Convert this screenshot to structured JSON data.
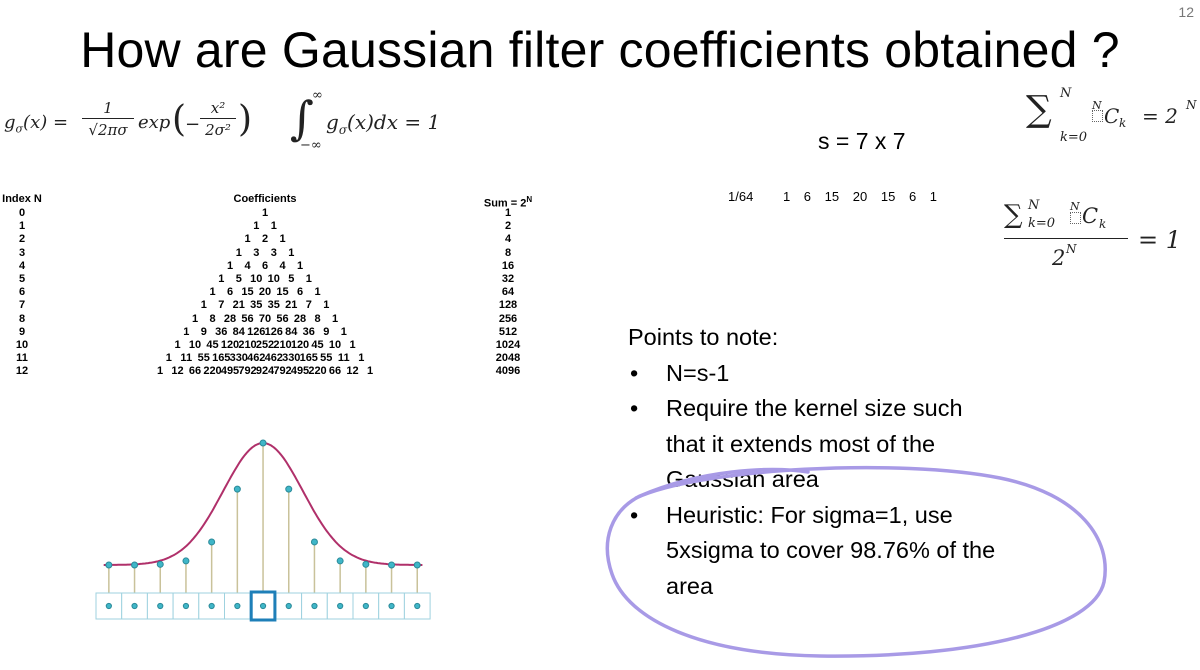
{
  "slide": {
    "number": "12",
    "title": "How are Gaussian filter coefficients obtained ?"
  },
  "formulas": {
    "gaussian_lhs": "g",
    "gaussian_sub": "σ",
    "gaussian_arg": "(x) =",
    "gaussian_num": "1",
    "gaussian_den": "√2πσ",
    "gaussian_exp": "exp",
    "gaussian_exp_num": "x²",
    "gaussian_exp_den": "2σ²",
    "integral_upper": "∞",
    "integral_lower": "−∞",
    "integral_body": "g",
    "integral_sub": "σ",
    "integral_rest": "(x)dx = 1",
    "binom_sum_upper": "N",
    "binom_sum_lower": "k=0",
    "binom_sum_body": "C",
    "binom_sum_body_sub": "k",
    "binom_sum_body_sup": "N",
    "binom_sum_rhs": "= 2",
    "binom_sum_rhs_sup": "N",
    "ratio_num_upper": "N",
    "ratio_num_lower": "k=0",
    "ratio_num_body": "C",
    "ratio_num_body_sub": "k",
    "ratio_num_body_sup": "N",
    "ratio_den": "2",
    "ratio_den_sup": "N",
    "ratio_rhs": "= 1"
  },
  "size_label": "s = 7 x 7",
  "kernel_row": {
    "scale": "1/64",
    "values": [
      "1",
      "6",
      "15",
      "20",
      "15",
      "6",
      "1"
    ]
  },
  "pascal": {
    "header_index": "Index N",
    "header_coefficients": "Coefficients",
    "header_sum": "Sum = 2",
    "header_sum_sup": "N",
    "rows": [
      {
        "n": "0",
        "coefficients": [
          "1"
        ],
        "sum": "1"
      },
      {
        "n": "1",
        "coefficients": [
          "1",
          "1"
        ],
        "sum": "2"
      },
      {
        "n": "2",
        "coefficients": [
          "1",
          "2",
          "1"
        ],
        "sum": "4"
      },
      {
        "n": "3",
        "coefficients": [
          "1",
          "3",
          "3",
          "1"
        ],
        "sum": "8"
      },
      {
        "n": "4",
        "coefficients": [
          "1",
          "4",
          "6",
          "4",
          "1"
        ],
        "sum": "16"
      },
      {
        "n": "5",
        "coefficients": [
          "1",
          "5",
          "10",
          "10",
          "5",
          "1"
        ],
        "sum": "32"
      },
      {
        "n": "6",
        "coefficients": [
          "1",
          "6",
          "15",
          "20",
          "15",
          "6",
          "1"
        ],
        "sum": "64"
      },
      {
        "n": "7",
        "coefficients": [
          "1",
          "7",
          "21",
          "35",
          "35",
          "21",
          "7",
          "1"
        ],
        "sum": "128"
      },
      {
        "n": "8",
        "coefficients": [
          "1",
          "8",
          "28",
          "56",
          "70",
          "56",
          "28",
          "8",
          "1"
        ],
        "sum": "256"
      },
      {
        "n": "9",
        "coefficients": [
          "1",
          "9",
          "36",
          "84",
          "126",
          "126",
          "84",
          "36",
          "9",
          "1"
        ],
        "sum": "512"
      },
      {
        "n": "10",
        "coefficients": [
          "1",
          "10",
          "45",
          "120",
          "210",
          "252",
          "210",
          "120",
          "45",
          "10",
          "1"
        ],
        "sum": "1024"
      },
      {
        "n": "11",
        "coefficients": [
          "1",
          "11",
          "55",
          "165",
          "330",
          "462",
          "462",
          "330",
          "165",
          "55",
          "11",
          "1"
        ],
        "sum": "2048"
      },
      {
        "n": "12",
        "coefficients": [
          "1",
          "12",
          "66",
          "220",
          "495",
          "792",
          "924",
          "792",
          "495",
          "220",
          "66",
          "12",
          "1"
        ],
        "sum": "4096"
      }
    ]
  },
  "notes": {
    "heading": "Points to note:",
    "bullet_char": "•",
    "items": [
      {
        "lines": [
          "N=s-1"
        ]
      },
      {
        "lines": [
          "Require the kernel size such",
          "that it extends most of the",
          "Gaussian area"
        ]
      },
      {
        "lines": [
          "Heuristic: For sigma=1, use",
          "5xsigma to cover 98.76% of the",
          "area"
        ]
      }
    ]
  },
  "colors": {
    "curve": "#b0306a",
    "stems": "#c9c29a",
    "points": "#3fb6c8",
    "cells": "#9fd2df",
    "highlight": "#1e7fb8",
    "ink": "#a89ae6"
  },
  "gauss_figure": {
    "sample_count": 13,
    "center_index": 6,
    "sample_values": [
      0.1,
      0.1,
      0.105,
      0.13,
      0.27,
      0.66,
      1.0,
      0.66,
      0.27,
      0.13,
      0.105,
      0.1,
      0.1
    ]
  }
}
